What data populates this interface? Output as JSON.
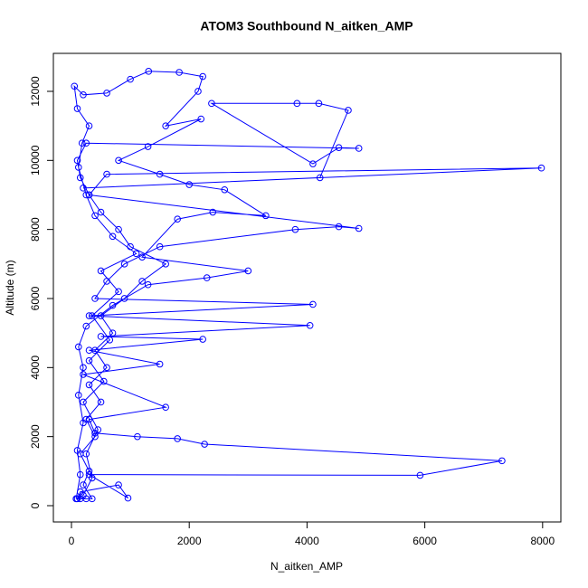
{
  "chart_data": {
    "type": "line",
    "markers": true,
    "title": "ATOM3 Southbound N_aitken_AMP",
    "x_label": "N_aitken_AMP",
    "y_label": "Altitude (m)",
    "xlim": [
      -307,
      8310
    ],
    "ylim": [
      -472,
      13100
    ],
    "xticks": [
      0,
      2000,
      4000,
      6000,
      8000
    ],
    "yticks": [
      0,
      2000,
      4000,
      6000,
      8000,
      10000,
      12000
    ],
    "x": [
      80,
      150,
      250,
      350,
      200,
      300,
      150,
      400,
      250,
      500,
      300,
      600,
      400,
      700,
      500,
      900,
      1200,
      1600,
      1000,
      800,
      500,
      300,
      150,
      100,
      250,
      4880,
      4540,
      4100,
      2380,
      3830,
      4200,
      4700,
      4220,
      200,
      7980,
      600,
      300,
      4880,
      4540,
      3800,
      1500,
      900,
      600,
      400,
      4100,
      300,
      4050,
      500,
      2230,
      300,
      1500,
      200,
      1600,
      300,
      400,
      1120,
      1800,
      2260,
      7310,
      5920,
      300,
      960,
      800,
      150,
      100,
      200,
      350,
      250,
      450,
      200,
      550,
      300,
      650,
      350,
      800,
      500,
      1100,
      700,
      400,
      250,
      120,
      180,
      300,
      100,
      50,
      200,
      600,
      1000,
      1310,
      1830,
      2230,
      2150,
      1600,
      2200,
      1300,
      800,
      1500,
      2000,
      2600,
      3300,
      2400,
      1800,
      1200,
      3000,
      2300,
      1300,
      700,
      250,
      120,
      200,
      120,
      200,
      100,
      150,
      80
    ],
    "series": [
      {
        "name": "N_aitken_AMP",
        "color": "#0000ff",
        "values": [
          200,
          200,
          200,
          200,
          600,
          1000,
          1500,
          2000,
          2500,
          3000,
          3500,
          4000,
          4500,
          5000,
          5500,
          6000,
          6500,
          7000,
          7500,
          8000,
          8500,
          9000,
          9500,
          10000,
          10500,
          10350,
          10370,
          9900,
          11650,
          11650,
          11650,
          11450,
          9500,
          9200,
          9780,
          9600,
          9000,
          8030,
          8080,
          8000,
          7500,
          7000,
          6500,
          6000,
          5830,
          5500,
          5220,
          4900,
          4820,
          4500,
          4100,
          3800,
          2850,
          2500,
          2100,
          2000,
          1940,
          1780,
          1300,
          880,
          900,
          220,
          600,
          400,
          200,
          300,
          800,
          1500,
          2200,
          3000,
          3600,
          4200,
          4800,
          5500,
          6200,
          6800,
          7300,
          7800,
          8400,
          9000,
          9800,
          10500,
          11000,
          11500,
          12150,
          11900,
          11950,
          12350,
          12580,
          12550,
          12430,
          12000,
          11000,
          11200,
          10400,
          10000,
          9600,
          9300,
          9150,
          8400,
          8500,
          8300,
          7200,
          6800,
          6600,
          6400,
          5800,
          5200,
          4600,
          4000,
          3200,
          2400,
          1600,
          900,
          200
        ]
      }
    ]
  }
}
